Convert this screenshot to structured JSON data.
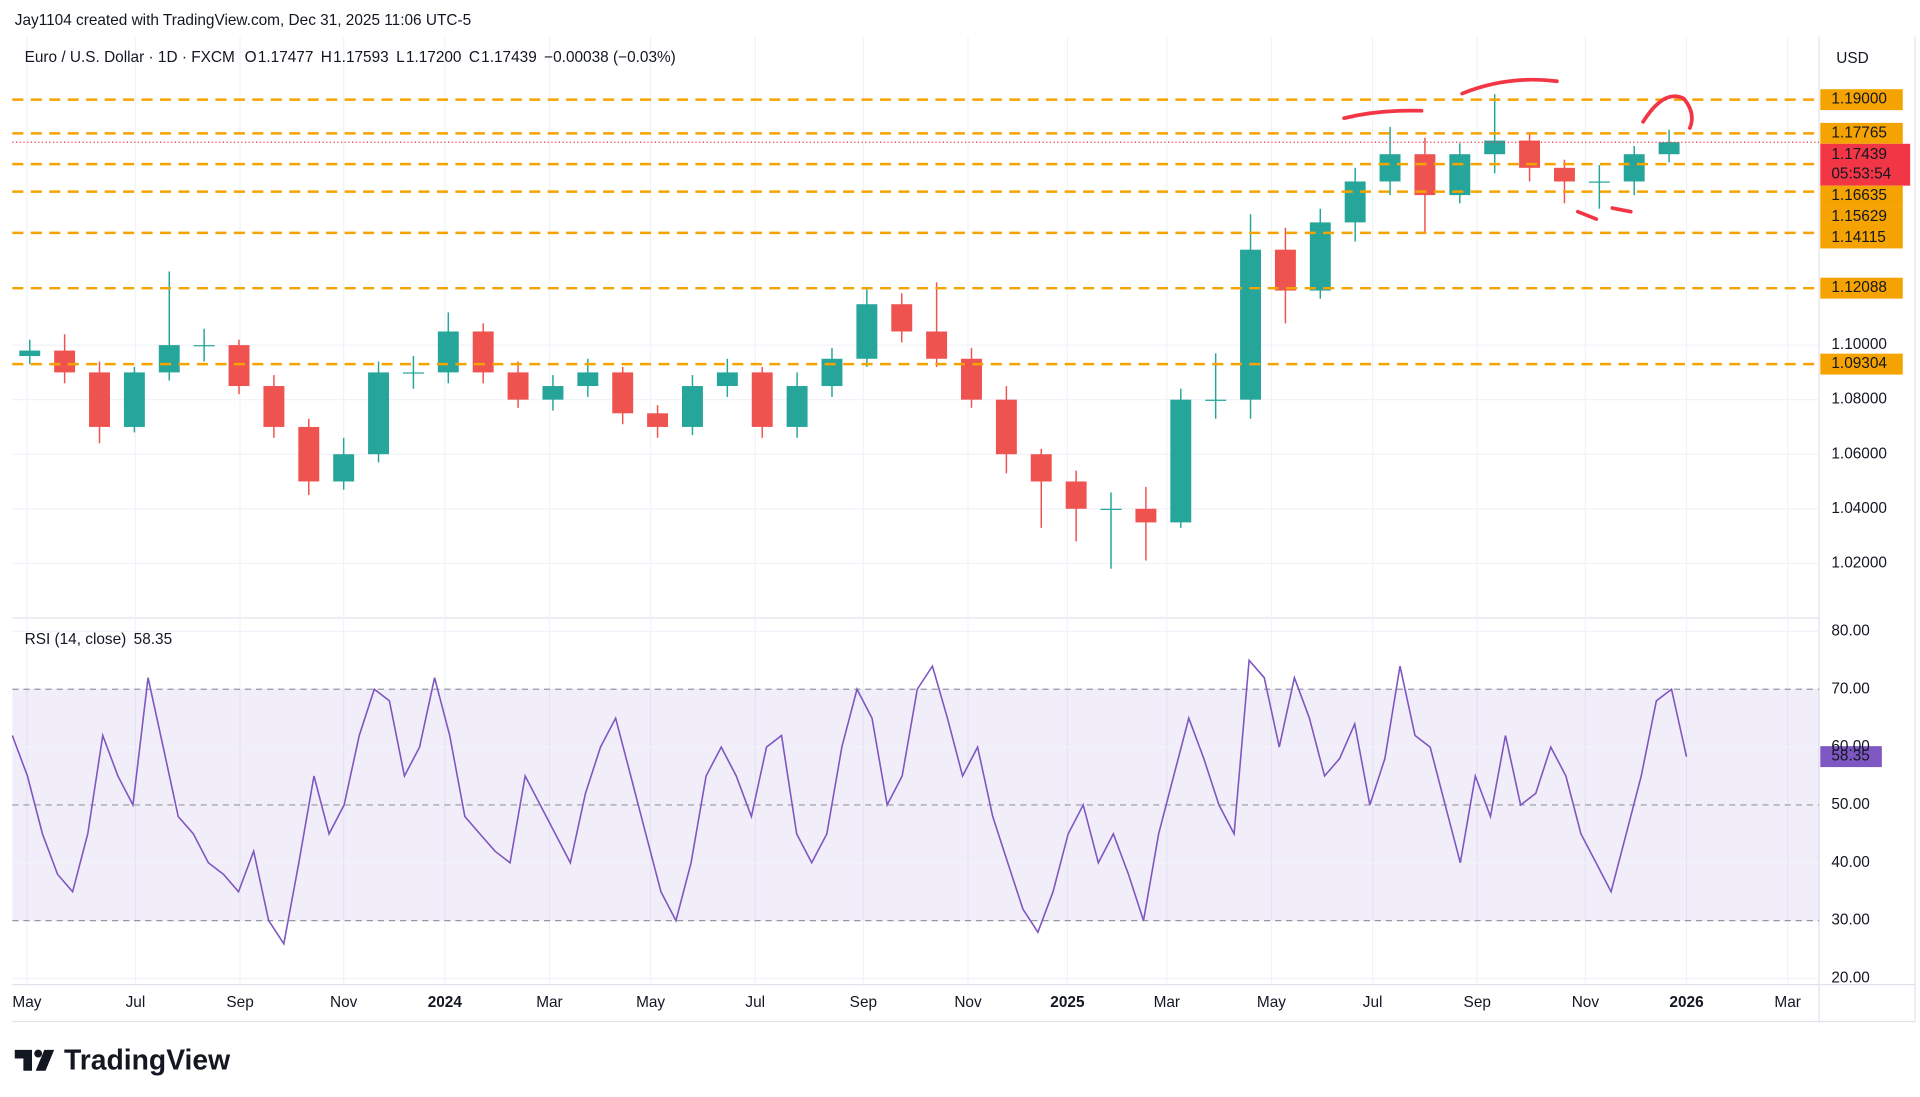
{
  "header": {
    "attribution": "Jay1104 created with TradingView.com, Dec 31, 2025 11:06 UTC-5",
    "symbol": "Euro / U.S. Dollar · 1D · FXCM",
    "ohlc": [
      {
        "key": "O",
        "value": "1.17477"
      },
      {
        "key": "H",
        "value": "1.17593"
      },
      {
        "key": "L",
        "value": "1.17200"
      },
      {
        "key": "C",
        "value": "1.17439"
      }
    ],
    "change": "−0.00038 (−0.03%)"
  },
  "footer": {
    "logo": "TradingView"
  },
  "chart_data": [
    {
      "type": "candlestick",
      "currency": "USD",
      "up_color": "#26a69a",
      "down_color": "#ef5350",
      "level_color": "#f5a300",
      "last_color": "#f23645",
      "open": [
        1.096,
        1.098,
        1.09,
        1.07,
        1.09,
        1.1,
        1.1,
        1.085,
        1.07,
        1.05,
        1.06,
        1.09,
        1.09,
        1.105,
        1.09,
        1.08,
        1.085,
        1.09,
        1.075,
        1.07,
        1.085,
        1.09,
        1.07,
        1.085,
        1.095,
        1.115,
        1.105,
        1.095,
        1.08,
        1.06,
        1.05,
        1.04,
        1.04,
        1.035,
        1.08,
        1.08,
        1.135,
        1.12,
        1.145,
        1.16,
        1.17,
        1.155,
        1.17,
        1.175,
        1.165,
        1.16,
        1.16,
        1.17
      ],
      "high": [
        1.102,
        1.104,
        1.094,
        1.092,
        1.127,
        1.106,
        1.102,
        1.089,
        1.073,
        1.066,
        1.094,
        1.096,
        1.112,
        1.108,
        1.094,
        1.089,
        1.095,
        1.092,
        1.078,
        1.089,
        1.095,
        1.092,
        1.09,
        1.099,
        1.121,
        1.119,
        1.123,
        1.099,
        1.085,
        1.062,
        1.054,
        1.046,
        1.048,
        1.084,
        1.097,
        1.148,
        1.143,
        1.15,
        1.165,
        1.18,
        1.176,
        1.174,
        1.192,
        1.178,
        1.168,
        1.166,
        1.173,
        1.179
      ],
      "low": [
        1.093,
        1.086,
        1.064,
        1.068,
        1.087,
        1.094,
        1.082,
        1.066,
        1.045,
        1.047,
        1.057,
        1.084,
        1.086,
        1.086,
        1.077,
        1.076,
        1.081,
        1.071,
        1.066,
        1.067,
        1.081,
        1.066,
        1.066,
        1.081,
        1.092,
        1.101,
        1.092,
        1.077,
        1.053,
        1.033,
        1.028,
        1.018,
        1.021,
        1.033,
        1.073,
        1.073,
        1.108,
        1.117,
        1.138,
        1.155,
        1.141,
        1.152,
        1.163,
        1.16,
        1.152,
        1.15,
        1.155,
        1.167
      ],
      "close": [
        1.098,
        1.09,
        1.07,
        1.09,
        1.1,
        1.1,
        1.085,
        1.07,
        1.05,
        1.06,
        1.09,
        1.09,
        1.105,
        1.09,
        1.08,
        1.085,
        1.09,
        1.075,
        1.07,
        1.085,
        1.09,
        1.07,
        1.085,
        1.095,
        1.115,
        1.105,
        1.095,
        1.08,
        1.06,
        1.05,
        1.04,
        1.04,
        1.035,
        1.08,
        1.08,
        1.135,
        1.12,
        1.145,
        1.16,
        1.17,
        1.155,
        1.17,
        1.175,
        1.165,
        1.16,
        1.16,
        1.17,
        1.1744
      ],
      "xlim": [
        -0.5,
        51.3
      ],
      "xticks": [
        {
          "value": -0.08,
          "label": "May"
        },
        {
          "value": 3.03,
          "label": "Jul"
        },
        {
          "value": 6.03,
          "label": "Sep"
        },
        {
          "value": 9.0,
          "label": "Nov"
        },
        {
          "value": 11.9,
          "label": "2024"
        },
        {
          "value": 14.9,
          "label": "Mar"
        },
        {
          "value": 17.8,
          "label": "May"
        },
        {
          "value": 20.8,
          "label": "Jul"
        },
        {
          "value": 23.9,
          "label": "Sep"
        },
        {
          "value": 26.9,
          "label": "Nov"
        },
        {
          "value": 29.75,
          "label": "2025"
        },
        {
          "value": 32.6,
          "label": "Mar"
        },
        {
          "value": 35.6,
          "label": "May"
        },
        {
          "value": 38.5,
          "label": "Jul"
        },
        {
          "value": 41.5,
          "label": "Sep"
        },
        {
          "value": 44.6,
          "label": "Nov"
        },
        {
          "value": 47.5,
          "label": "2026"
        },
        {
          "value": 50.4,
          "label": "Mar"
        }
      ],
      "ylim": [
        1.0,
        1.213
      ],
      "yticks": [
        {
          "value": 1.1,
          "label": "1.10000"
        },
        {
          "value": 1.08,
          "label": "1.08000"
        },
        {
          "value": 1.06,
          "label": "1.06000"
        },
        {
          "value": 1.04,
          "label": "1.04000"
        },
        {
          "value": 1.02,
          "label": "1.02000"
        }
      ],
      "levels": [
        {
          "value": 1.19,
          "label": "1.19000"
        },
        1.17765,
        1.16635,
        1.15629,
        1.14115,
        1.12088,
        1.09304
      ],
      "last_price": 1.17439,
      "countdown": "05:53:54"
    },
    {
      "type": "line",
      "title": "RSI (14, close)",
      "last_value": 58.35,
      "band_color": "#7e57c2",
      "series": [
        {
          "color": "#7e57c2",
          "values": [
            62,
            55,
            45,
            38,
            35,
            45,
            62,
            55,
            50,
            72,
            60,
            48,
            45,
            40,
            38,
            35,
            42,
            30,
            26,
            40,
            55,
            45,
            50,
            62,
            70,
            68,
            55,
            60,
            72,
            62,
            48,
            45,
            42,
            40,
            55,
            50,
            45,
            40,
            52,
            60,
            65,
            55,
            45,
            35,
            30,
            40,
            55,
            60,
            55,
            48,
            60,
            62,
            45,
            40,
            45,
            60,
            70,
            65,
            50,
            55,
            70,
            74,
            65,
            55,
            60,
            48,
            40,
            32,
            28,
            35,
            45,
            50,
            40,
            45,
            38,
            30,
            45,
            55,
            65,
            58,
            50,
            45,
            75,
            72,
            60,
            72,
            65,
            55,
            58,
            64,
            50,
            58,
            74,
            62,
            60,
            50,
            40,
            55,
            48,
            62,
            50,
            52,
            60,
            55,
            45,
            40,
            35,
            45,
            55,
            68,
            70,
            58.35
          ]
        }
      ],
      "ylim": [
        20,
        80
      ],
      "yticks": [
        {
          "value": 80,
          "label": "80.00"
        },
        {
          "value": 70,
          "label": "70.00"
        },
        {
          "value": 60,
          "label": "60.00"
        },
        {
          "value": 50,
          "label": "50.00"
        },
        {
          "value": 40,
          "label": "40.00"
        },
        {
          "value": 30,
          "label": "30.00"
        },
        {
          "value": 20,
          "label": "20.00"
        }
      ],
      "band": [
        30,
        70
      ],
      "dashed_levels": [
        70,
        50,
        30
      ]
    }
  ]
}
